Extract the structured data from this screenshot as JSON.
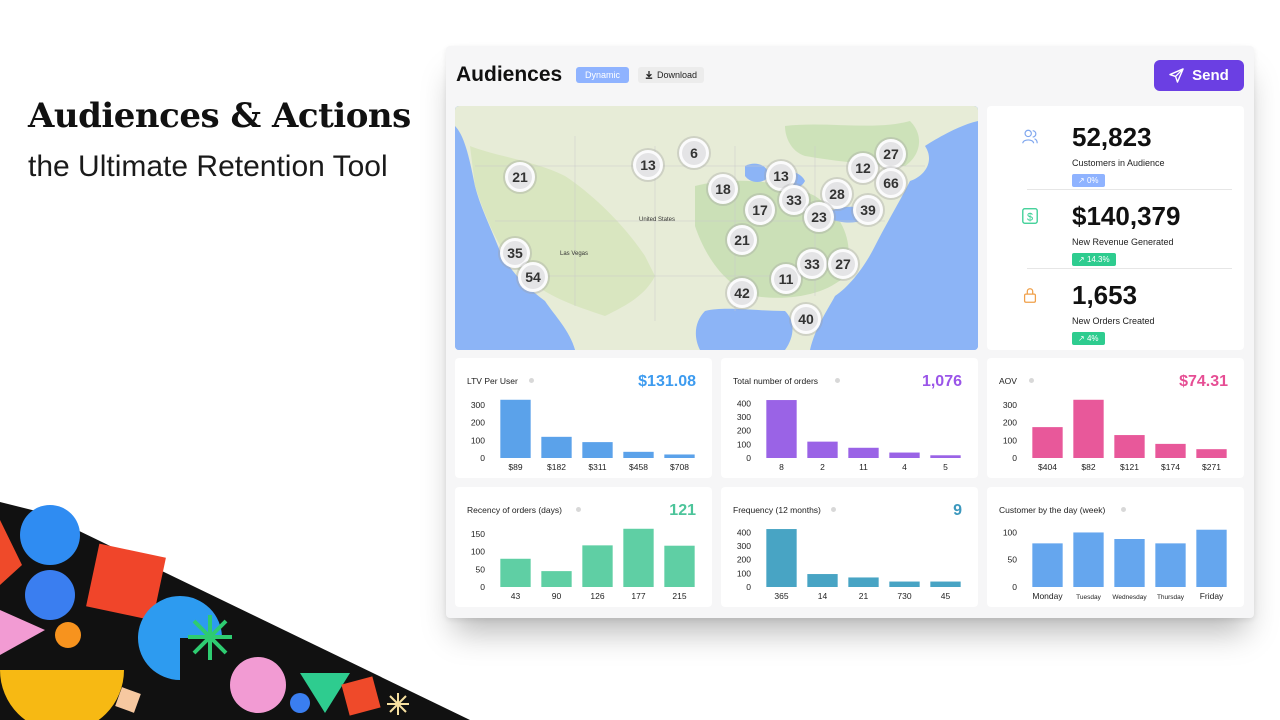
{
  "hero": {
    "title": "Audiences & Actions",
    "subtitle": "the Ultimate Retention Tool"
  },
  "header": {
    "title": "Audiences",
    "tag": "Dynamic",
    "download_label": "Download",
    "send_label": "Send"
  },
  "map": {
    "labels": [
      "United States",
      "Las Vegas"
    ],
    "clusters": [
      "6",
      "13",
      "21",
      "18",
      "13",
      "12",
      "27",
      "66",
      "33",
      "28",
      "17",
      "23",
      "39",
      "21",
      "35",
      "54",
      "11",
      "33",
      "27",
      "42",
      "40"
    ]
  },
  "stats": [
    {
      "value": "52,823",
      "label": "Customers in Audience",
      "badge": "0%",
      "color": "#8fb3ff",
      "icon": "users-icon"
    },
    {
      "value": "$140,379",
      "label": "New Revenue Generated",
      "badge": "14.3%",
      "color": "#2ecc8f",
      "icon": "dollar-icon"
    },
    {
      "value": "1,653",
      "label": "New Orders Created",
      "badge": "4%",
      "color": "#2ecc8f",
      "icon": "lock-icon"
    }
  ],
  "chart_data": [
    {
      "type": "bar",
      "title": "LTV Per User",
      "total": "$131.08",
      "color": "#5ba2ea",
      "value_color": "#3d9bef",
      "categories": [
        "$89",
        "$182",
        "$311",
        "$458",
        "$708"
      ],
      "values": [
        330,
        120,
        90,
        35,
        20
      ],
      "yticks": [
        0,
        100,
        200,
        300
      ],
      "ylim": [
        0,
        340
      ]
    },
    {
      "type": "bar",
      "title": "Total number of orders",
      "total": "1,076",
      "color": "#9a63e6",
      "value_color": "#9a55e8",
      "categories": [
        "8",
        "2",
        "11",
        "4",
        "5"
      ],
      "values": [
        425,
        120,
        75,
        40,
        20
      ],
      "yticks": [
        0,
        100,
        200,
        300,
        400
      ],
      "ylim": [
        0,
        440
      ]
    },
    {
      "type": "bar",
      "title": "AOV",
      "total": "$74.31",
      "color": "#e8589a",
      "value_color": "#e64e94",
      "categories": [
        "$404",
        "$82",
        "$121",
        "$174",
        "$271"
      ],
      "values": [
        175,
        330,
        130,
        80,
        50
      ],
      "yticks": [
        0,
        100,
        200,
        300
      ],
      "ylim": [
        0,
        340
      ]
    },
    {
      "type": "bar",
      "title": "Recency of orders (days)",
      "total": "121",
      "color": "#5fcfa4",
      "value_color": "#4cc49a",
      "categories": [
        "43",
        "90",
        "126",
        "177",
        "215"
      ],
      "values": [
        80,
        45,
        118,
        165,
        117
      ],
      "yticks": [
        0,
        50,
        100,
        150
      ],
      "ylim": [
        0,
        170
      ]
    },
    {
      "type": "bar",
      "title": "Frequency (12 months)",
      "total": "9",
      "color": "#48a4c4",
      "value_color": "#3c98be",
      "categories": [
        "365",
        "14",
        "21",
        "730",
        "45"
      ],
      "values": [
        425,
        95,
        70,
        40,
        40
      ],
      "yticks": [
        0,
        100,
        200,
        300,
        400
      ],
      "ylim": [
        0,
        440
      ]
    },
    {
      "type": "bar",
      "title": "Customer by the day (week)",
      "total": "",
      "color": "#65a6ee",
      "value_color": "#65a6ee",
      "categories": [
        "Monday",
        "Tuesday",
        "Wednesday",
        "Thursday",
        "Friday"
      ],
      "values": [
        80,
        100,
        88,
        80,
        105
      ],
      "yticks": [
        0,
        50,
        100
      ],
      "ylim": [
        0,
        110
      ]
    }
  ]
}
